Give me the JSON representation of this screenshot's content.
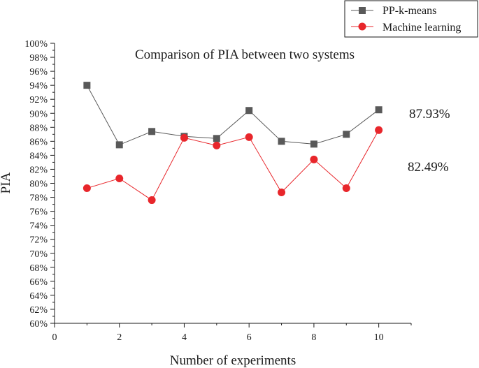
{
  "chart_data": {
    "type": "line",
    "title": "Comparison of PIA between two systems",
    "xlabel": "Number of experiments",
    "ylabel": "PIA",
    "xlim": [
      0,
      11
    ],
    "ylim": [
      60,
      100
    ],
    "xticks": [
      0,
      2,
      4,
      6,
      8,
      10
    ],
    "xtick_labels": [
      "0",
      "2",
      "4",
      "6",
      "8",
      "10"
    ],
    "yticks": [
      60,
      62,
      64,
      66,
      68,
      70,
      72,
      74,
      76,
      78,
      80,
      82,
      84,
      86,
      88,
      90,
      92,
      94,
      96,
      98,
      100
    ],
    "ytick_labels": [
      "60%",
      "62%",
      "64%",
      "66%",
      "68%",
      "70%",
      "72%",
      "74%",
      "76%",
      "78%",
      "80%",
      "82%",
      "84%",
      "86%",
      "88%",
      "90%",
      "92%",
      "94%",
      "96%",
      "98%",
      "100%"
    ],
    "grid": false,
    "legend_position": "top-right",
    "x": [
      1,
      2,
      3,
      4,
      5,
      6,
      7,
      8,
      9,
      10
    ],
    "series": [
      {
        "name": "PP-k-means",
        "color": "#595959",
        "marker": "square",
        "values": [
          94.0,
          85.5,
          87.4,
          86.7,
          86.4,
          90.4,
          86.0,
          85.6,
          87.0,
          90.5
        ]
      },
      {
        "name": "Machine learning",
        "color": "#e8262b",
        "marker": "circle",
        "values": [
          79.3,
          80.7,
          77.6,
          86.5,
          85.4,
          86.6,
          78.7,
          83.4,
          79.3,
          87.6
        ]
      }
    ],
    "annotations": [
      {
        "text": "87.93%",
        "series": "PP-k-means"
      },
      {
        "text": "82.49%",
        "series": "Machine learning"
      }
    ]
  }
}
